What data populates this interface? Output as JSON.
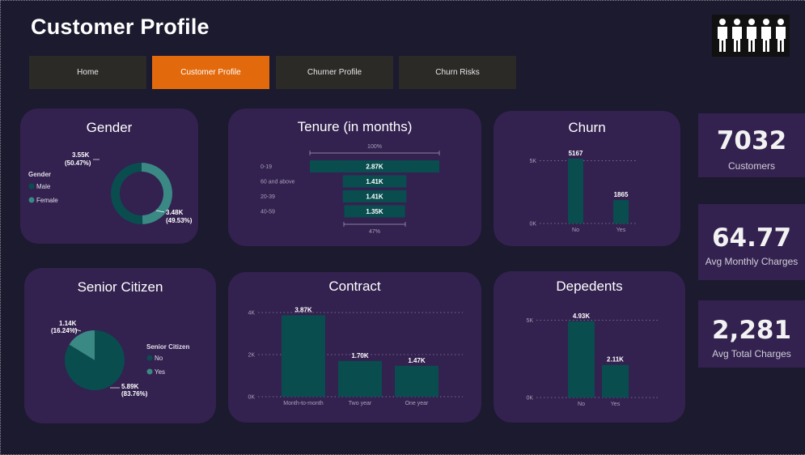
{
  "page": {
    "title": "Customer Profile"
  },
  "nav": [
    {
      "label": "Home",
      "active": false
    },
    {
      "label": "Customer Profile",
      "active": true
    },
    {
      "label": "Churner Profile",
      "active": false
    },
    {
      "label": "Churn Risks",
      "active": false
    }
  ],
  "logo": {
    "icon": "people-group-icon",
    "figures": 5
  },
  "colors": {
    "primary": "#094d4f",
    "secondary": "#3a8985",
    "card": "#33214f",
    "active_tab": "#e36a0c",
    "background": "#1b1a2e"
  },
  "kpis": [
    {
      "value": "7032",
      "label": "Customers"
    },
    {
      "value": "64.77",
      "label": "Avg Monthly Charges"
    },
    {
      "value": "2,281",
      "label": "Avg Total Charges"
    }
  ],
  "gender": {
    "title": "Gender",
    "legend_title": "Gender",
    "legend": [
      "Male",
      "Female"
    ],
    "label_male": "3.55K",
    "label_male_pct": "(50.47%)",
    "label_female": "3.48K",
    "label_female_pct": "(49.53%)"
  },
  "tenure": {
    "title": "Tenure (in months)",
    "top_pct": "100%",
    "bottom_pct": "47%"
  },
  "churn": {
    "title": "Churn"
  },
  "senior": {
    "title": "Senior Citizen",
    "legend_title": "Senior Citizen",
    "legend": [
      "No",
      "Yes"
    ],
    "label_yes": "1.14K",
    "label_yes_pct": "(16.24%)",
    "label_no": "5.89K",
    "label_no_pct": "(83.76%)"
  },
  "contract": {
    "title": "Contract"
  },
  "dependents": {
    "title": "Depedents"
  },
  "chart_data": [
    {
      "type": "pie",
      "subtype": "donut",
      "title": "Gender",
      "categories": [
        "Male",
        "Female"
      ],
      "values": [
        3550,
        3480
      ],
      "labels": [
        "3.55K (50.47%)",
        "3.48K (49.53%)"
      ]
    },
    {
      "type": "bar",
      "subtype": "funnel",
      "title": "Tenure (in months)",
      "categories": [
        "0-19",
        "60 and above",
        "20-39",
        "40-59"
      ],
      "values": [
        2870,
        1410,
        1410,
        1350
      ],
      "labels": [
        "2.87K",
        "1.41K",
        "1.41K",
        "1.35K"
      ]
    },
    {
      "type": "bar",
      "title": "Churn",
      "categories": [
        "No",
        "Yes"
      ],
      "values": [
        5167,
        1865
      ],
      "labels": [
        "5167",
        "1865"
      ],
      "yticks": [
        "0K",
        "5K"
      ],
      "ylim": [
        0,
        6000
      ]
    },
    {
      "type": "pie",
      "title": "Senior Citizen",
      "categories": [
        "No",
        "Yes"
      ],
      "values": [
        5890,
        1140
      ],
      "labels": [
        "5.89K (83.76%)",
        "1.14K (16.24%)"
      ]
    },
    {
      "type": "bar",
      "title": "Contract",
      "categories": [
        "Month-to-month",
        "Two year",
        "One year"
      ],
      "values": [
        3870,
        1700,
        1470
      ],
      "labels": [
        "3.87K",
        "1.70K",
        "1.47K"
      ],
      "yticks": [
        "0K",
        "2K",
        "4K"
      ],
      "ylim": [
        0,
        4000
      ]
    },
    {
      "type": "bar",
      "title": "Depedents",
      "categories": [
        "No",
        "Yes"
      ],
      "values": [
        4930,
        2110
      ],
      "labels": [
        "4.93K",
        "2.11K"
      ],
      "yticks": [
        "0K",
        "5K"
      ],
      "ylim": [
        0,
        5600
      ]
    }
  ]
}
